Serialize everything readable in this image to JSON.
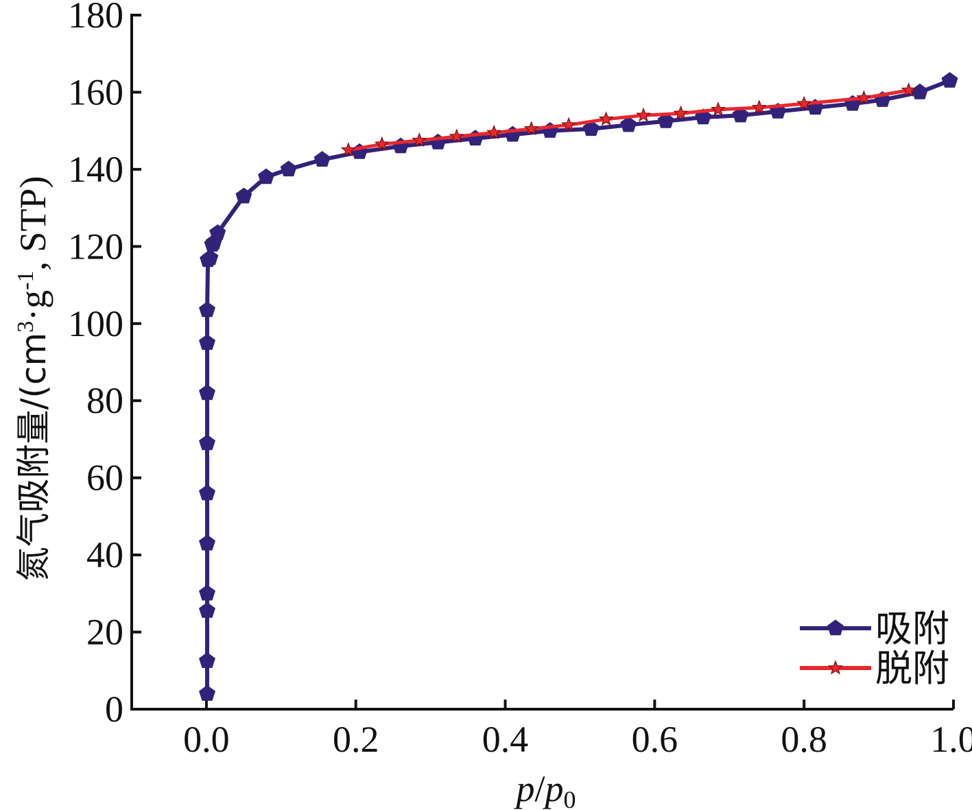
{
  "chart_data": {
    "type": "line",
    "xlabel_italic_1": "p",
    "xlabel_sep": "/",
    "xlabel_italic_2": "p",
    "xlabel_sub": "0",
    "ylabel_main": "氮气吸附量/(cm",
    "ylabel_sup1": "3",
    "ylabel_mid": "·g",
    "ylabel_sup2": "-1",
    "ylabel_end": ", STP)",
    "xlim": [
      -0.1,
      1.0
    ],
    "ylim": [
      0,
      180
    ],
    "xticks": [
      0.0,
      0.2,
      0.4,
      0.6,
      0.8,
      1.0
    ],
    "xtick_labels": [
      "0.0",
      "0.2",
      "0.4",
      "0.6",
      "0.8",
      "1.0"
    ],
    "yticks": [
      0,
      20,
      40,
      60,
      80,
      100,
      120,
      140,
      160,
      180
    ],
    "ytick_labels": [
      "0",
      "20",
      "40",
      "60",
      "80",
      "100",
      "120",
      "140",
      "160",
      "180"
    ],
    "grid": false,
    "legend_position": "bottom-right",
    "series": [
      {
        "name": "吸附",
        "color": "#33227a",
        "marker": "pentagon",
        "x": [
          0.001,
          0.001,
          0.001,
          0.001,
          0.001,
          0.001,
          0.001,
          0.001,
          0.001,
          0.001,
          0.002,
          0.005,
          0.008,
          0.01,
          0.015,
          0.05,
          0.08,
          0.11,
          0.155,
          0.205,
          0.26,
          0.31,
          0.36,
          0.41,
          0.46,
          0.515,
          0.565,
          0.615,
          0.665,
          0.715,
          0.765,
          0.815,
          0.865,
          0.905,
          0.955,
          0.995
        ],
        "y": [
          4,
          12.5,
          25.5,
          30,
          43,
          56,
          69,
          82,
          95,
          103.5,
          116.5,
          117,
          120.5,
          121,
          123.5,
          133,
          138,
          140,
          142.5,
          144.5,
          146,
          147,
          148,
          149,
          150,
          150.5,
          151.5,
          152.5,
          153.5,
          154,
          155,
          156,
          157,
          158,
          160,
          163
        ]
      },
      {
        "name": "脱附",
        "color": "#e8282e",
        "marker": "star",
        "x": [
          0.19,
          0.235,
          0.285,
          0.335,
          0.385,
          0.435,
          0.485,
          0.535,
          0.585,
          0.635,
          0.685,
          0.74,
          0.8,
          0.88,
          0.94
        ],
        "y": [
          145,
          146.5,
          147.5,
          148.5,
          149.5,
          150.5,
          151.5,
          153,
          154,
          154.5,
          155.5,
          156,
          157,
          158.5,
          160.5
        ]
      }
    ]
  }
}
